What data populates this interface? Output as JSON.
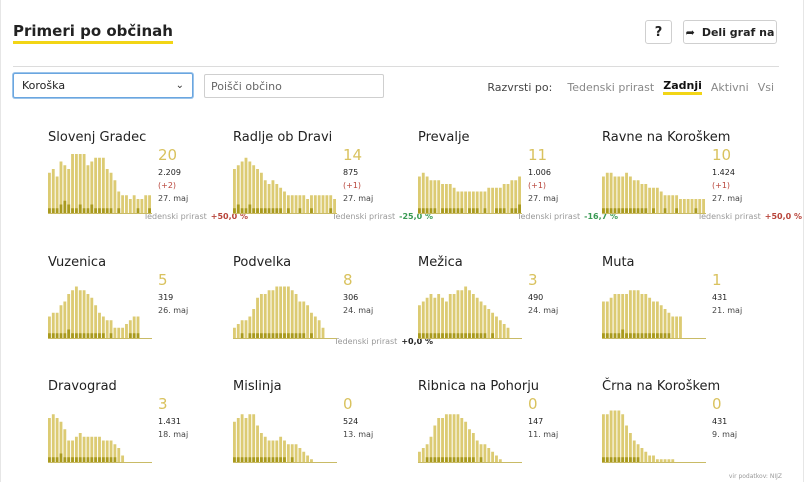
{
  "header": {
    "title": "Primeri po občinah",
    "help_label": "?",
    "share_label": "Deli graf na"
  },
  "filters": {
    "region_selected": "Koroška",
    "search_placeholder": "Poišči občino",
    "sort_label": "Razvrsti po:",
    "sort_options": [
      "Tedenski prirast",
      "Zadnji",
      "Aktivni",
      "Vsi"
    ],
    "sort_active": "Zadnji"
  },
  "colors": {
    "bar_total": "#dccb73",
    "bar_new": "#a99a1e",
    "accent": "#f2d516",
    "number": "#d9c25e",
    "up": "#b8443a",
    "down": "#3a9a54"
  },
  "weekly_label": "Tedenski prirast",
  "footer_text": "vir podatkov: NIJZ",
  "chart_data": [
    {
      "type": "bar",
      "name": "Slovenj Gradec",
      "latest": "20",
      "total": "2.209",
      "change": "(+2)",
      "date": "27. maj",
      "weekly": "+50,0 %",
      "weekly_dir": "up",
      "values": [
        11,
        12,
        10,
        14,
        13,
        12,
        16,
        16,
        16,
        16,
        13,
        14,
        15,
        15,
        15,
        12,
        11,
        9,
        6,
        5,
        5,
        4,
        5,
        4,
        4,
        5,
        5
      ],
      "new": [
        1,
        1,
        1,
        2,
        3,
        2,
        1,
        1,
        2,
        1,
        1,
        2,
        1,
        1,
        1,
        1,
        1,
        0,
        1,
        0,
        0,
        0,
        0,
        1,
        0,
        0,
        1
      ]
    },
    {
      "type": "bar",
      "name": "Radlje ob Dravi",
      "latest": "14",
      "total": "875",
      "change": "(+1)",
      "date": "27. maj",
      "weekly": "-25,0 %",
      "weekly_dir": "down",
      "values": [
        12,
        13,
        14,
        15,
        14,
        13,
        12,
        11,
        9,
        8,
        9,
        8,
        7,
        6,
        5,
        5,
        5,
        5,
        5,
        4,
        5,
        5,
        5,
        5,
        5,
        5,
        4
      ],
      "new": [
        1,
        2,
        1,
        1,
        2,
        1,
        1,
        1,
        1,
        1,
        1,
        1,
        1,
        0,
        1,
        0,
        0,
        1,
        0,
        0,
        1,
        0,
        0,
        0,
        0,
        1,
        0
      ]
    },
    {
      "type": "bar",
      "name": "Prevalje",
      "latest": "11",
      "total": "1.006",
      "change": "(+1)",
      "date": "27. maj",
      "weekly": "-16,7 %",
      "weekly_dir": "down",
      "values": [
        10,
        11,
        10,
        9,
        9,
        9,
        8,
        8,
        8,
        7,
        6,
        6,
        6,
        6,
        6,
        6,
        6,
        6,
        7,
        7,
        7,
        7,
        8,
        8,
        9,
        9,
        10
      ],
      "new": [
        1,
        1,
        1,
        1,
        1,
        0,
        1,
        1,
        1,
        1,
        1,
        1,
        0,
        1,
        1,
        1,
        0,
        1,
        0,
        0,
        1,
        1,
        1,
        0,
        1,
        1,
        2
      ]
    },
    {
      "type": "bar",
      "name": "Ravne na Koroškem",
      "latest": "10",
      "total": "1.424",
      "change": "(+1)",
      "date": "27. maj",
      "weekly": "+50,0 %",
      "weekly_dir": "up",
      "values": [
        10,
        11,
        11,
        10,
        10,
        10,
        11,
        10,
        9,
        9,
        8,
        8,
        7,
        7,
        7,
        6,
        5,
        5,
        5,
        5,
        4,
        4,
        4,
        4,
        4,
        4,
        4
      ],
      "new": [
        1,
        1,
        1,
        1,
        1,
        1,
        1,
        1,
        1,
        1,
        1,
        1,
        0,
        1,
        0,
        0,
        1,
        0,
        0,
        1,
        0,
        0,
        0,
        0,
        1,
        0,
        0
      ]
    },
    {
      "type": "bar",
      "name": "Vuzenica",
      "latest": "5",
      "total": "319",
      "change": "",
      "date": "26. maj",
      "weekly": "",
      "weekly_dir": "",
      "values": [
        6,
        7,
        7,
        9,
        10,
        12,
        13,
        14,
        13,
        13,
        12,
        11,
        9,
        7,
        6,
        5,
        5,
        3,
        3,
        3,
        4,
        5,
        6,
        6
      ],
      "new": [
        1,
        1,
        1,
        1,
        1,
        2,
        1,
        1,
        1,
        1,
        1,
        1,
        1,
        1,
        1,
        0,
        1,
        0,
        0,
        0,
        0,
        1,
        1,
        1
      ]
    },
    {
      "type": "bar",
      "name": "Podvelka",
      "latest": "8",
      "total": "306",
      "change": "",
      "date": "24. maj",
      "weekly": "+0,0 %",
      "weekly_dir": "zero",
      "values": [
        3,
        4,
        5,
        5,
        6,
        8,
        11,
        12,
        12,
        13,
        13,
        14,
        14,
        14,
        14,
        13,
        12,
        10,
        10,
        9,
        7,
        6,
        5,
        3
      ],
      "new": [
        0,
        0,
        1,
        0,
        1,
        1,
        1,
        1,
        1,
        1,
        1,
        1,
        1,
        1,
        1,
        1,
        1,
        1,
        1,
        0,
        1,
        0,
        0,
        0
      ]
    },
    {
      "type": "bar",
      "name": "Mežica",
      "latest": "3",
      "total": "490",
      "change": "",
      "date": "24. maj",
      "weekly": "",
      "weekly_dir": "",
      "values": [
        9,
        10,
        11,
        12,
        11,
        12,
        11,
        10,
        12,
        12,
        13,
        13,
        14,
        13,
        12,
        11,
        10,
        9,
        8,
        7,
        6,
        5,
        4,
        3
      ],
      "new": [
        1,
        1,
        1,
        1,
        1,
        1,
        1,
        1,
        1,
        1,
        1,
        1,
        1,
        1,
        1,
        1,
        1,
        1,
        0,
        1,
        0,
        0,
        0,
        0
      ]
    },
    {
      "type": "bar",
      "name": "Muta",
      "latest": "1",
      "total": "431",
      "change": "",
      "date": "21. maj",
      "weekly": "",
      "weekly_dir": "",
      "values": [
        10,
        10,
        11,
        12,
        12,
        12,
        12,
        13,
        13,
        13,
        12,
        12,
        11,
        10,
        10,
        9,
        8,
        7,
        6,
        6,
        6
      ],
      "new": [
        1,
        1,
        1,
        1,
        1,
        2,
        1,
        1,
        1,
        1,
        1,
        1,
        1,
        1,
        1,
        1,
        1,
        1,
        0,
        0,
        0
      ]
    },
    {
      "type": "bar",
      "name": "Dravograd",
      "latest": "3",
      "total": "1.431",
      "change": "",
      "date": "18. maj",
      "weekly": "",
      "weekly_dir": "",
      "values": [
        12,
        13,
        12,
        11,
        9,
        6,
        6,
        7,
        8,
        7,
        7,
        7,
        7,
        7,
        6,
        6,
        6,
        5,
        4,
        2
      ],
      "new": [
        1,
        1,
        1,
        2,
        1,
        1,
        1,
        1,
        1,
        1,
        1,
        1,
        1,
        1,
        1,
        1,
        1,
        1,
        0,
        0
      ]
    },
    {
      "type": "bar",
      "name": "Mislinja",
      "latest": "0",
      "total": "524",
      "change": "",
      "date": "13. maj",
      "weekly": "",
      "weekly_dir": "",
      "values": [
        11,
        12,
        13,
        12,
        13,
        13,
        10,
        8,
        7,
        6,
        6,
        6,
        7,
        6,
        5,
        5,
        5,
        4,
        3,
        2,
        1
      ],
      "new": [
        1,
        1,
        1,
        1,
        1,
        1,
        1,
        1,
        1,
        1,
        1,
        1,
        1,
        1,
        0,
        1,
        0,
        0,
        0,
        0,
        0
      ]
    },
    {
      "type": "bar",
      "name": "Ribnica na Pohorju",
      "latest": "0",
      "total": "147",
      "change": "",
      "date": "11. maj",
      "weekly": "",
      "weekly_dir": "",
      "values": [
        3,
        4,
        5,
        7,
        10,
        12,
        12,
        13,
        13,
        13,
        13,
        12,
        11,
        9,
        8,
        6,
        5,
        5,
        4,
        3,
        2,
        1
      ],
      "new": [
        0,
        0,
        1,
        1,
        1,
        1,
        1,
        1,
        1,
        1,
        1,
        1,
        1,
        1,
        1,
        0,
        1,
        0,
        0,
        0,
        0,
        0
      ]
    },
    {
      "type": "bar",
      "name": "Črna na Koroškem",
      "latest": "0",
      "total": "431",
      "change": "",
      "date": "9. maj",
      "weekly": "",
      "weekly_dir": "",
      "values": [
        13,
        13,
        14,
        14,
        14,
        13,
        10,
        8,
        6,
        5,
        4,
        3,
        2,
        2,
        1,
        1,
        1,
        1,
        1
      ],
      "new": [
        1,
        1,
        1,
        1,
        1,
        1,
        1,
        1,
        1,
        1,
        0,
        0,
        0,
        0,
        0,
        0,
        0,
        0,
        0
      ]
    }
  ]
}
